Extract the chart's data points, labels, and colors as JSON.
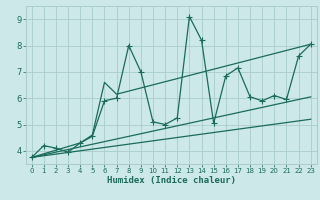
{
  "title": "",
  "xlabel": "Humidex (Indice chaleur)",
  "ylabel": "",
  "xlim": [
    -0.5,
    23.5
  ],
  "ylim": [
    3.5,
    9.5
  ],
  "bg_color": "#cce8e8",
  "grid_color": "#aacccc",
  "line_color": "#1a6b5a",
  "xticks": [
    0,
    1,
    2,
    3,
    4,
    5,
    6,
    7,
    8,
    9,
    10,
    11,
    12,
    13,
    14,
    15,
    16,
    17,
    18,
    19,
    20,
    21,
    22,
    23
  ],
  "yticks": [
    4,
    5,
    6,
    7,
    8,
    9
  ],
  "series": [
    {
      "x": [
        0,
        1,
        2,
        3,
        4,
        5,
        6,
        7,
        8,
        9,
        10,
        11,
        12,
        13,
        14,
        15,
        16,
        17,
        18,
        19,
        20,
        21,
        22,
        23
      ],
      "y": [
        3.75,
        4.2,
        4.1,
        3.95,
        4.3,
        4.55,
        5.9,
        6.0,
        8.0,
        7.0,
        5.1,
        5.0,
        5.25,
        9.1,
        8.2,
        5.05,
        6.85,
        7.15,
        6.05,
        5.9,
        6.1,
        5.95,
        7.6,
        8.05
      ],
      "marker": "+",
      "markersize": 4,
      "linewidth": 0.9,
      "has_markers": true
    },
    {
      "x": [
        0,
        4,
        5,
        6,
        7,
        23
      ],
      "y": [
        3.75,
        4.3,
        4.6,
        6.6,
        6.15,
        8.05
      ],
      "marker": null,
      "linewidth": 0.9,
      "has_markers": false
    },
    {
      "x": [
        0,
        23
      ],
      "y": [
        3.75,
        6.05
      ],
      "marker": null,
      "linewidth": 0.9,
      "has_markers": false
    },
    {
      "x": [
        0,
        23
      ],
      "y": [
        3.75,
        5.2
      ],
      "marker": null,
      "linewidth": 0.9,
      "has_markers": false
    }
  ]
}
